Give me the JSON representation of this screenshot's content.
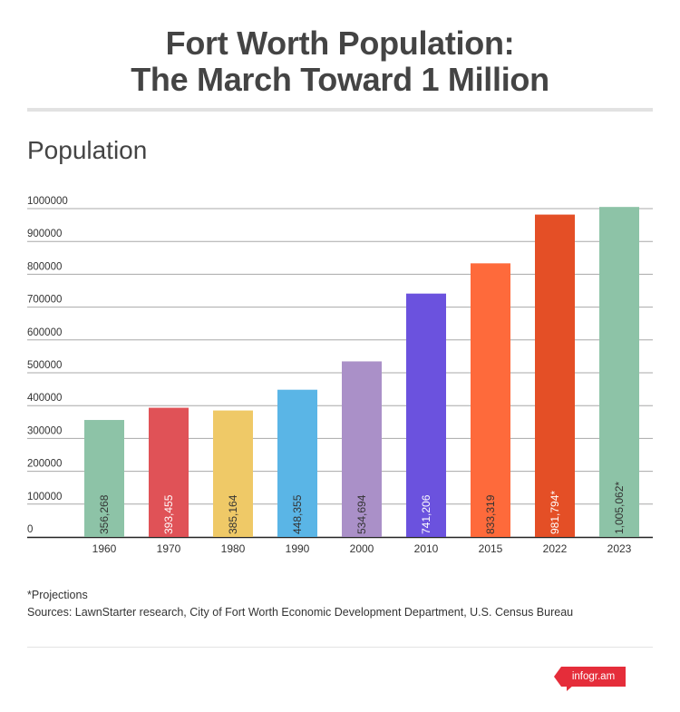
{
  "header": {
    "title_line1": "Fort Worth Population:",
    "title_line2": "The March Toward 1 Million",
    "subtitle": "Population"
  },
  "chart_data": {
    "type": "bar",
    "title": "Fort Worth Population: The March Toward 1 Million",
    "ylabel": "Population",
    "xlabel": "",
    "ylim": [
      0,
      1000000
    ],
    "y_ticks": [
      0,
      100000,
      200000,
      300000,
      400000,
      500000,
      600000,
      700000,
      800000,
      900000,
      1000000
    ],
    "grid": true,
    "categories": [
      "1960",
      "1970",
      "1980",
      "1990",
      "2000",
      "2010",
      "2015",
      "2022",
      "2023"
    ],
    "values": [
      356268,
      393455,
      385164,
      448355,
      534694,
      741206,
      833319,
      981794,
      1005062
    ],
    "data_labels": [
      "356,268",
      "393,455",
      "385,164",
      "448,355",
      "534,694",
      "741,206",
      "833,319",
      "981,794*",
      "1,005,062*"
    ],
    "colors": [
      "#8dc3a7",
      "#e05257",
      "#efc967",
      "#5ab5e6",
      "#aa90c8",
      "#6b52de",
      "#fe6a3b",
      "#e44f26",
      "#8dc3a7"
    ],
    "label_colors": [
      "#333333",
      "#ffffff",
      "#333333",
      "#333333",
      "#333333",
      "#ffffff",
      "#333333",
      "#ffffff",
      "#333333"
    ]
  },
  "footer": {
    "note": "*Projections",
    "sources": "Sources: LawnStarter research, City of Fort Worth Economic Development Department, U.S. Census Bureau",
    "brand": "infogr.am"
  }
}
